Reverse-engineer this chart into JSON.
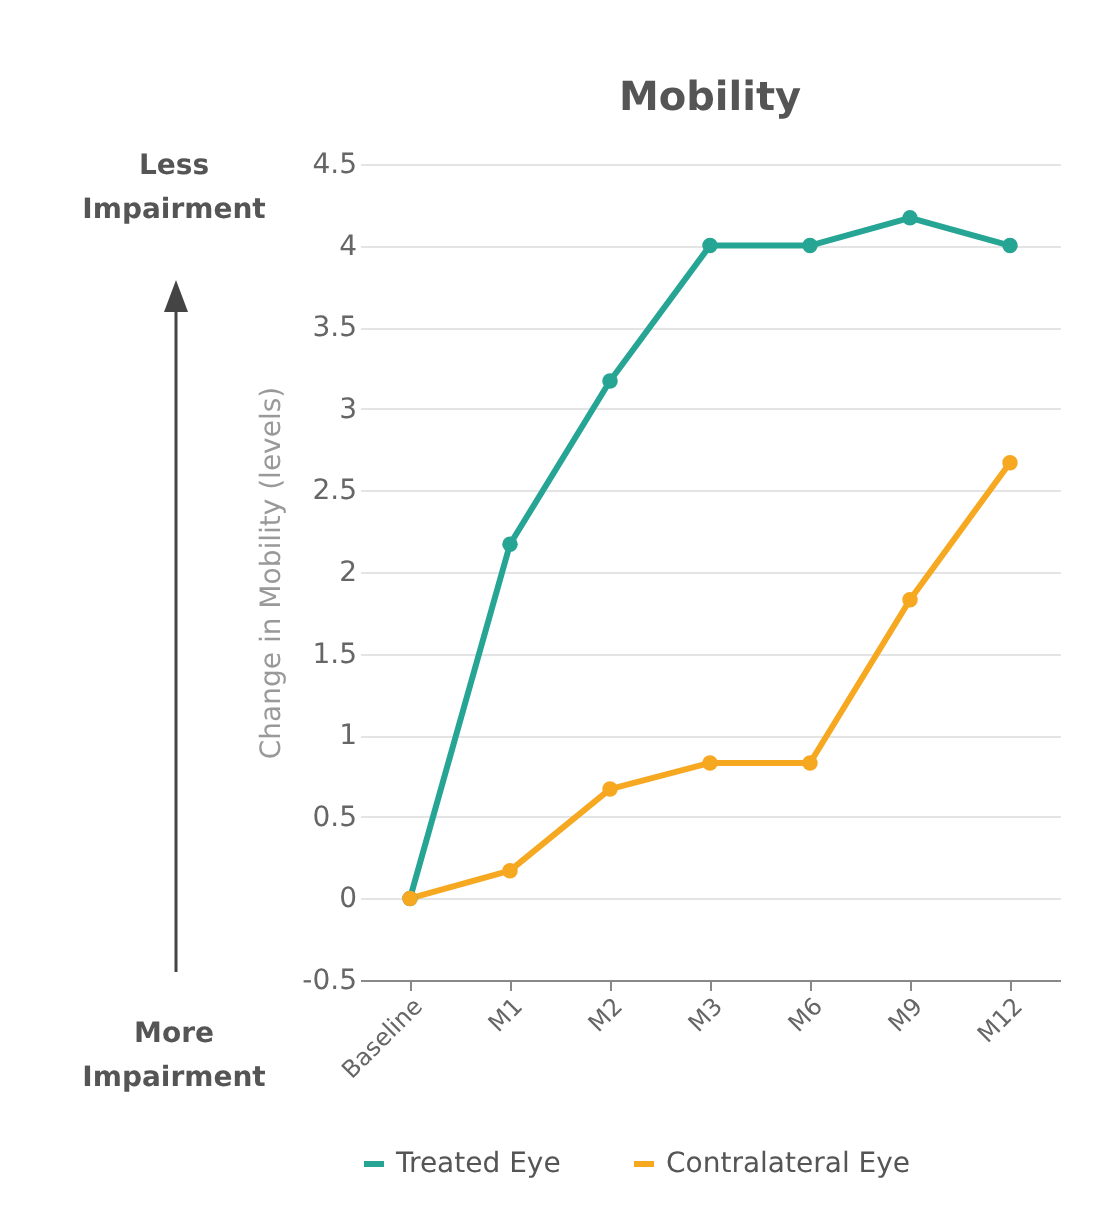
{
  "chart_data": {
    "type": "line",
    "title": "Mobility",
    "ylabel": "Change in Mobility (levels)",
    "categories": [
      "Baseline",
      "M1",
      "M2",
      "M3",
      "M6",
      "M9",
      "M12"
    ],
    "series": [
      {
        "name": "Treated Eye",
        "color": "#26a595",
        "values": [
          0,
          2.17,
          3.17,
          4.0,
          4.0,
          4.17,
          4.0
        ]
      },
      {
        "name": "Contralateral Eye",
        "color": "#f6a821",
        "values": [
          0,
          0.17,
          0.67,
          0.83,
          0.83,
          1.83,
          2.67
        ]
      }
    ],
    "ylim": [
      -0.5,
      4.5
    ],
    "yticks": [
      -0.5,
      0,
      0.5,
      1,
      1.5,
      2,
      2.5,
      3,
      3.5,
      4,
      4.5
    ],
    "grid": "y",
    "legend": "bottom",
    "marker": "circle",
    "line_style": "solid",
    "annotations": [
      "Less Impairment",
      "More Impairment"
    ]
  }
}
